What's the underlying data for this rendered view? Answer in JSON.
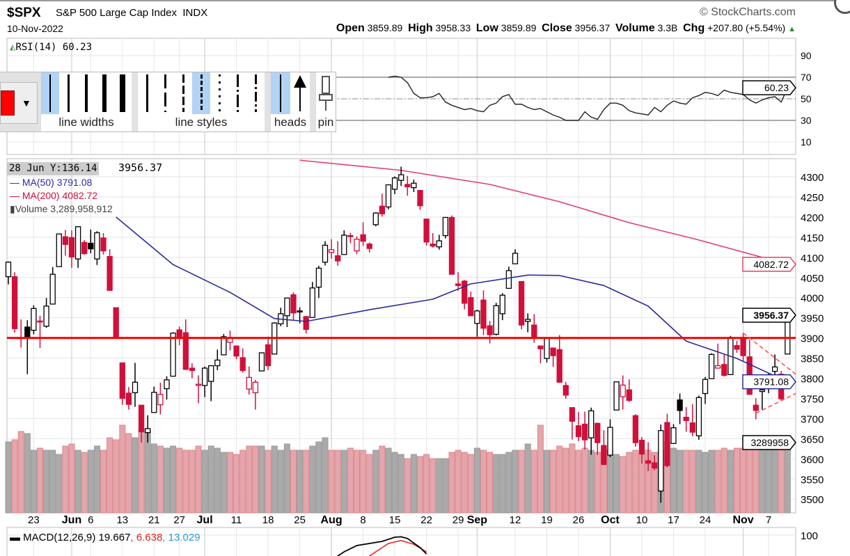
{
  "header": {
    "symbol": "$SPX",
    "name": "S&P 500 Large Cap Index",
    "exchange": "INDX",
    "date": "10-Nov-2022",
    "brand": "StockCharts.com",
    "open_label": "Open",
    "open": "3859.89",
    "high_label": "High",
    "high": "3958.33",
    "low_label": "Low",
    "low": "3859.89",
    "close_label": "Close",
    "close": "3956.37",
    "volume_label": "Volume",
    "volume": "3.3B",
    "chg_label": "Chg",
    "chg": "+207.80 (+5.54%)"
  },
  "rsi": {
    "label": "RSI(14) 60.23",
    "tag": "60.23",
    "axis": [
      "90",
      "70",
      "50",
      "30",
      "10"
    ],
    "start_index": 60,
    "values": [
      70,
      71,
      70,
      65,
      55,
      51,
      51,
      52,
      55,
      47,
      44,
      42,
      40,
      41,
      39,
      38,
      44,
      46,
      52,
      54,
      45,
      45,
      42,
      40,
      41,
      38,
      35,
      33,
      30,
      30,
      30,
      38,
      33,
      31,
      40,
      46,
      46,
      44,
      39,
      37,
      36,
      35,
      42,
      38,
      44,
      48,
      46,
      45,
      51,
      53,
      56,
      55,
      53,
      58,
      56,
      55,
      54,
      49,
      46,
      49,
      51,
      52,
      47,
      60.23
    ]
  },
  "toolbar": {
    "line_widths": "line widths",
    "line_styles": "line styles",
    "heads": "heads",
    "pin": "pin",
    "color": "#ff0000"
  },
  "legend": {
    "crosshair": "28 Jun Y:136.14",
    "last": "3956.37",
    "ma50": "MA(50) 3791.08",
    "ma200": "MA(200) 4082.72",
    "volume": "Volume 3,289,958,912"
  },
  "tags": {
    "ma200": "4082.72",
    "close": "3956.37",
    "ma50": "3791.08",
    "volume": "3289958"
  },
  "price_axis": [
    "4300",
    "4250",
    "4200",
    "4150",
    "4100",
    "4050",
    "4000",
    "3950",
    "3900",
    "3850",
    "3800",
    "3750",
    "3700",
    "3650",
    "3600",
    "3550",
    "3500"
  ],
  "x_ticks": [
    {
      "label": "23",
      "i": 4
    },
    {
      "label": "Jun",
      "i": 10,
      "major": true
    },
    {
      "label": "6",
      "i": 13
    },
    {
      "label": "13",
      "i": 18
    },
    {
      "label": "21",
      "i": 23
    },
    {
      "label": "27",
      "i": 27
    },
    {
      "label": "Jul",
      "i": 31,
      "major": true
    },
    {
      "label": "11",
      "i": 36
    },
    {
      "label": "18",
      "i": 41
    },
    {
      "label": "25",
      "i": 46
    },
    {
      "label": "Aug",
      "i": 51,
      "major": true
    },
    {
      "label": "8",
      "i": 56
    },
    {
      "label": "15",
      "i": 61
    },
    {
      "label": "22",
      "i": 66
    },
    {
      "label": "29",
      "i": 71
    },
    {
      "label": "Sep",
      "i": 74,
      "major": true
    },
    {
      "label": "12",
      "i": 80
    },
    {
      "label": "19",
      "i": 85
    },
    {
      "label": "26",
      "i": 90
    },
    {
      "label": "Oct",
      "i": 95,
      "major": true
    },
    {
      "label": "10",
      "i": 100
    },
    {
      "label": "17",
      "i": 105
    },
    {
      "label": "24",
      "i": 110
    },
    {
      "label": "Nov",
      "i": 116,
      "major": true
    },
    {
      "label": "7",
      "i": 120
    }
  ],
  "macd": {
    "label": "MACD(12,26,9) 19.667",
    "signal": ", 6.638",
    "hist": ", 13.029",
    "axis": "100"
  },
  "chart_data": {
    "type": "candlestick",
    "ylim": [
      3470,
      4350
    ],
    "ohlc": [
      [
        4052,
        4090,
        4033,
        4088
      ],
      [
        4052,
        4063,
        3913,
        3923
      ],
      [
        3900,
        3946,
        3876,
        3901
      ],
      [
        3927,
        3944,
        3810,
        3901
      ],
      [
        3919,
        3981,
        3909,
        3973
      ],
      [
        3942,
        3955,
        3875,
        3941
      ],
      [
        3929,
        3999,
        3925,
        3979
      ],
      [
        3984,
        4076,
        3984,
        4058
      ],
      [
        4077,
        4158,
        4077,
        4158
      ],
      [
        4151,
        4168,
        4104,
        4132
      ],
      [
        4149,
        4167,
        4074,
        4101
      ],
      [
        4096,
        4177,
        4074,
        4176
      ],
      [
        4137,
        4143,
        4107,
        4109
      ],
      [
        4135,
        4169,
        4110,
        4121
      ],
      [
        4096,
        4165,
        4081,
        4161
      ],
      [
        4148,
        4160,
        4107,
        4116
      ],
      [
        4102,
        4120,
        4017,
        4018
      ],
      [
        3975,
        3975,
        3900,
        3901
      ],
      [
        3838,
        3839,
        3734,
        3750
      ],
      [
        3763,
        3778,
        3722,
        3735
      ],
      [
        3764,
        3838,
        3729,
        3790
      ],
      [
        3733,
        3733,
        3640,
        3667
      ],
      [
        3665,
        3708,
        3640,
        3675
      ],
      [
        3715,
        3779,
        3715,
        3765
      ],
      [
        3734,
        3789,
        3710,
        3760
      ],
      [
        3774,
        3805,
        3747,
        3796
      ],
      [
        3805,
        3914,
        3805,
        3912
      ],
      [
        3920,
        3928,
        3882,
        3901
      ],
      [
        3913,
        3946,
        3820,
        3822
      ],
      [
        3825,
        3837,
        3800,
        3819
      ],
      [
        3785,
        3807,
        3738,
        3785
      ],
      [
        3782,
        3829,
        3753,
        3825
      ],
      [
        3792,
        3832,
        3743,
        3831
      ],
      [
        3831,
        3871,
        3820,
        3845
      ],
      [
        3858,
        3910,
        3858,
        3903
      ],
      [
        3889,
        3918,
        3869,
        3899
      ],
      [
        3880,
        3880,
        3847,
        3855
      ],
      [
        3851,
        3874,
        3814,
        3819
      ],
      [
        3773,
        3829,
        3759,
        3802
      ],
      [
        3764,
        3796,
        3722,
        3790
      ],
      [
        3818,
        3864,
        3818,
        3863
      ],
      [
        3883,
        3903,
        3820,
        3831
      ],
      [
        3860,
        3939,
        3860,
        3937
      ],
      [
        3935,
        3975,
        3929,
        3960
      ],
      [
        3955,
        3999,
        3927,
        3999
      ],
      [
        4007,
        4013,
        3944,
        3962
      ],
      [
        3966,
        3976,
        3936,
        3967
      ],
      [
        3953,
        3954,
        3911,
        3921
      ],
      [
        3951,
        4039,
        3951,
        4024
      ],
      [
        4026,
        4079,
        3999,
        4073
      ],
      [
        4088,
        4140,
        4080,
        4130
      ],
      [
        4112,
        4145,
        4097,
        4119
      ],
      [
        4104,
        4140,
        4079,
        4091
      ],
      [
        4107,
        4167,
        4107,
        4155
      ],
      [
        4154,
        4161,
        4135,
        4152
      ],
      [
        4116,
        4152,
        4108,
        4145
      ],
      [
        4156,
        4187,
        4128,
        4140
      ],
      [
        4133,
        4137,
        4112,
        4122
      ],
      [
        4181,
        4212,
        4177,
        4210
      ],
      [
        4227,
        4258,
        4201,
        4208
      ],
      [
        4225,
        4280,
        4219,
        4280
      ],
      [
        4269,
        4301,
        4257,
        4297
      ],
      [
        4291,
        4325,
        4277,
        4305
      ],
      [
        4281,
        4302,
        4253,
        4275
      ],
      [
        4273,
        4293,
        4262,
        4284
      ],
      [
        4266,
        4267,
        4218,
        4228
      ],
      [
        4195,
        4195,
        4129,
        4138
      ],
      [
        4133,
        4160,
        4124,
        4128
      ],
      [
        4126,
        4156,
        4119,
        4141
      ],
      [
        4154,
        4200,
        4147,
        4199
      ],
      [
        4199,
        4204,
        4057,
        4058
      ],
      [
        4034,
        4063,
        4017,
        4030
      ],
      [
        4041,
        4044,
        3971,
        3986
      ],
      [
        4000,
        4015,
        3954,
        3955
      ],
      [
        3936,
        3970,
        3903,
        3967
      ],
      [
        3994,
        4018,
        3907,
        3924
      ],
      [
        3930,
        3942,
        3886,
        3908
      ],
      [
        3909,
        3987,
        3906,
        3980
      ],
      [
        3960,
        4011,
        3944,
        4006
      ],
      [
        4023,
        4077,
        4023,
        4067
      ],
      [
        4084,
        4120,
        4084,
        4110
      ],
      [
        4040,
        4040,
        3921,
        3932
      ],
      [
        3941,
        3961,
        3914,
        3946
      ],
      [
        3932,
        3959,
        3888,
        3901
      ],
      [
        3880,
        3880,
        3837,
        3873
      ],
      [
        3849,
        3900,
        3839,
        3900
      ],
      [
        3875,
        3876,
        3828,
        3856
      ],
      [
        3871,
        3907,
        3789,
        3790
      ],
      [
        3782,
        3791,
        3749,
        3758
      ],
      [
        3727,
        3728,
        3648,
        3693
      ],
      [
        3682,
        3716,
        3644,
        3655
      ],
      [
        3686,
        3717,
        3623,
        3647
      ],
      [
        3652,
        3727,
        3610,
        3719
      ],
      [
        3688,
        3690,
        3610,
        3640
      ],
      [
        3633,
        3671,
        3584,
        3586
      ],
      [
        3609,
        3698,
        3604,
        3678
      ],
      [
        3721,
        3791,
        3721,
        3791
      ],
      [
        3754,
        3807,
        3722,
        3783
      ],
      [
        3771,
        3797,
        3741,
        3745
      ],
      [
        3707,
        3711,
        3630,
        3640
      ],
      [
        3646,
        3654,
        3588,
        3612
      ],
      [
        3595,
        3641,
        3570,
        3589
      ],
      [
        3590,
        3609,
        3571,
        3577
      ],
      [
        3520,
        3685,
        3491,
        3670
      ],
      [
        3690,
        3712,
        3579,
        3583
      ],
      [
        3638,
        3686,
        3638,
        3677
      ],
      [
        3746,
        3762,
        3686,
        3720
      ],
      [
        3703,
        3728,
        3667,
        3695
      ],
      [
        3689,
        3736,
        3656,
        3666
      ],
      [
        3657,
        3757,
        3647,
        3752
      ],
      [
        3762,
        3803,
        3736,
        3797
      ],
      [
        3799,
        3862,
        3799,
        3859
      ],
      [
        3825,
        3886,
        3824,
        3831
      ],
      [
        3834,
        3859,
        3804,
        3807
      ],
      [
        3809,
        3905,
        3808,
        3901
      ],
      [
        3881,
        3893,
        3863,
        3872
      ],
      [
        3901,
        3912,
        3843,
        3856
      ],
      [
        3853,
        3895,
        3759,
        3760
      ],
      [
        3733,
        3750,
        3698,
        3720
      ],
      [
        3767,
        3796,
        3721,
        3771
      ],
      [
        3780,
        3813,
        3763,
        3807
      ],
      [
        3817,
        3859,
        3786,
        3828
      ],
      [
        3810,
        3818,
        3745,
        3749
      ],
      [
        3860,
        3958,
        3860,
        3956
      ]
    ],
    "volume_billions": [
      3.4,
      3.5,
      3.9,
      3.8,
      3.0,
      3.1,
      3.0,
      3.0,
      2.8,
      3.2,
      3.3,
      3.0,
      2.9,
      3.0,
      3.2,
      3.0,
      3.6,
      3.5,
      4.2,
      3.8,
      3.6,
      4.0,
      3.9,
      3.3,
      3.2,
      3.1,
      3.2,
      3.1,
      3.0,
      3.0,
      3.2,
      3.0,
      3.2,
      3.1,
      2.9,
      2.9,
      2.8,
      3.0,
      3.2,
      3.2,
      3.2,
      3.0,
      3.2,
      3.0,
      3.3,
      3.0,
      3.0,
      3.0,
      3.2,
      3.4,
      3.6,
      3.0,
      3.0,
      3.0,
      3.1,
      3.0,
      3.0,
      2.8,
      3.0,
      3.2,
      3.1,
      2.9,
      2.8,
      2.6,
      2.8,
      2.7,
      2.8,
      2.6,
      2.6,
      2.6,
      2.9,
      3.0,
      2.9,
      2.8,
      3.1,
      3.0,
      2.9,
      2.8,
      2.8,
      2.9,
      3.0,
      3.0,
      3.3,
      3.0,
      4.2,
      3.0,
      3.0,
      3.2,
      3.1,
      3.3,
      3.0,
      3.1,
      3.0,
      2.9,
      3.1,
      3.0,
      2.8,
      2.7,
      2.9,
      3.0,
      2.8,
      3.0,
      2.9,
      3.0,
      3.4,
      3.1,
      3.0,
      3.0,
      3.0,
      3.0,
      2.9,
      3.0,
      3.0,
      3.1,
      3.0,
      3.1,
      3.1,
      3.1,
      3.2,
      3.0,
      3.0,
      3.0,
      3.0,
      3.29
    ],
    "ma50": [
      [
        17,
        4200
      ],
      [
        26,
        4082
      ],
      [
        35,
        4013
      ],
      [
        42,
        3948
      ],
      [
        47,
        3941
      ],
      [
        57,
        3970
      ],
      [
        67,
        3996
      ],
      [
        73,
        4034
      ],
      [
        82,
        4056
      ],
      [
        87,
        4055
      ],
      [
        94,
        4030
      ],
      [
        101,
        3979
      ],
      [
        107,
        3892
      ],
      [
        115,
        3849
      ],
      [
        123,
        3791.08
      ]
    ],
    "ma200": [
      [
        46,
        4341
      ],
      [
        62,
        4316
      ],
      [
        76,
        4281
      ],
      [
        87,
        4238
      ],
      [
        98,
        4186
      ],
      [
        109,
        4143
      ],
      [
        123,
        4082.72
      ]
    ],
    "annotations": {
      "horizontal_level": 3900,
      "triangle_upper": [
        [
          116,
          3912
        ],
        [
          124.3,
          3810
        ]
      ],
      "triangle_lower": [
        [
          118,
          3713
        ],
        [
          124.3,
          3762
        ]
      ]
    },
    "macd_line": [
      [
        51,
        40
      ],
      [
        53,
        60
      ],
      [
        55,
        75
      ],
      [
        57,
        80
      ],
      [
        59,
        85
      ],
      [
        61,
        95
      ],
      [
        62,
        96
      ],
      [
        63,
        92
      ],
      [
        65,
        70
      ],
      [
        66,
        55
      ]
    ],
    "macd_signal": [
      [
        56,
        40
      ],
      [
        58,
        60
      ],
      [
        60,
        80
      ],
      [
        62,
        87
      ],
      [
        64,
        78
      ],
      [
        66,
        60
      ]
    ]
  },
  "colors": {
    "up": "#000000",
    "down": "#d0103a",
    "ma50": "#2a2a9a",
    "ma200": "#e0406a",
    "level": "#ff0000",
    "volume_up": "#aaaaaa",
    "volume_down": "#e5a5ad"
  }
}
